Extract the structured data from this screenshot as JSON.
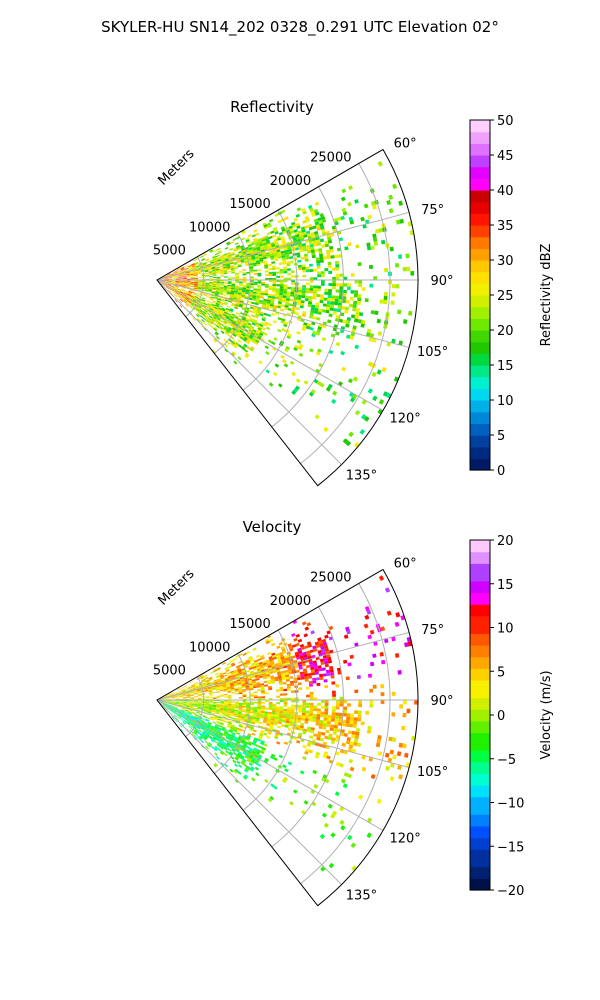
{
  "suptitle": "SKYLER-HU  SN14_202  0328_0.291 UTC Elevation 02°",
  "chart_data": [
    {
      "type": "heatmap",
      "title": "Reflectivity",
      "projection": "polar-sector",
      "theta_range_deg": [
        60,
        142
      ],
      "theta_ticks": [
        60,
        75,
        90,
        105,
        120,
        135
      ],
      "theta_tick_labels": [
        "60°",
        "75°",
        "90°",
        "105°",
        "120°",
        "135°"
      ],
      "r_range_m": [
        0,
        28000
      ],
      "r_ticks": [
        5000,
        10000,
        15000,
        20000,
        25000
      ],
      "r_tick_labels": [
        "5000",
        "10000",
        "15000",
        "20000",
        "25000"
      ],
      "r_axis_label": "Meters",
      "grid": true,
      "colorbar": {
        "label": "Reflectivity dBZ",
        "range": [
          0,
          50
        ],
        "ticks": [
          0,
          5,
          10,
          15,
          20,
          25,
          30,
          35,
          40,
          45,
          50
        ],
        "tick_labels": [
          "0",
          "5",
          "10",
          "15",
          "20",
          "25",
          "30",
          "35",
          "40",
          "45",
          "50"
        ],
        "colormap": "pyart_NWSRef"
      },
      "typical_range": [
        15,
        35
      ]
    },
    {
      "type": "heatmap",
      "title": "Velocity",
      "projection": "polar-sector",
      "theta_range_deg": [
        60,
        142
      ],
      "theta_ticks": [
        60,
        75,
        90,
        105,
        120,
        135
      ],
      "theta_tick_labels": [
        "60°",
        "75°",
        "90°",
        "105°",
        "120°",
        "135°"
      ],
      "r_range_m": [
        0,
        28000
      ],
      "r_ticks": [
        5000,
        10000,
        15000,
        20000,
        25000
      ],
      "r_tick_labels": [
        "5000",
        "10000",
        "15000",
        "20000",
        "25000"
      ],
      "r_axis_label": "Meters",
      "grid": true,
      "colorbar": {
        "label": "Velocity (m/s)",
        "range": [
          -20,
          20
        ],
        "ticks": [
          -20,
          -15,
          -10,
          -5,
          0,
          5,
          10,
          15,
          20
        ],
        "tick_labels": [
          "−20",
          "−15",
          "−10",
          "−5",
          "0",
          "5",
          "10",
          "15",
          "20"
        ],
        "colormap": "pyart_NWSVel"
      },
      "typical_range": [
        -12,
        10
      ]
    }
  ],
  "colors": {
    "grid": "#b0b0b0",
    "frame": "#000000"
  }
}
